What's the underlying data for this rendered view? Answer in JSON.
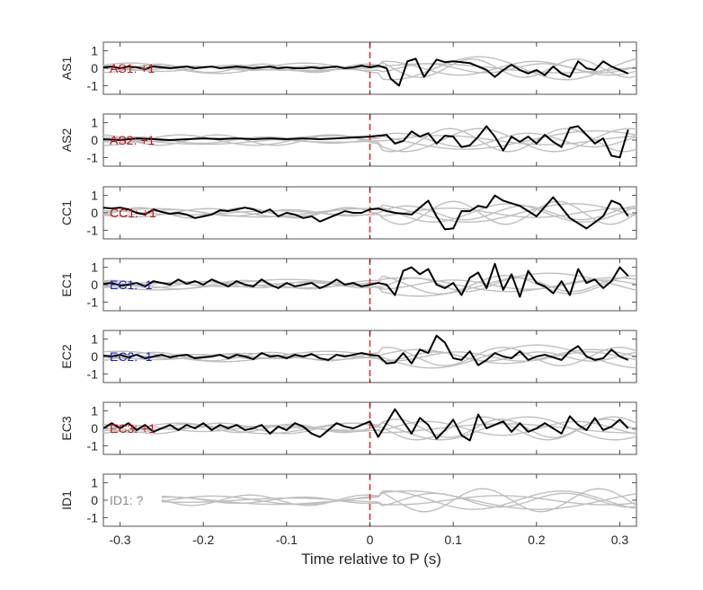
{
  "chart_data": {
    "type": "line",
    "xlabel": "Time relative to P (s)",
    "xlim": [
      -0.32,
      0.32
    ],
    "xticks": [
      -0.3,
      -0.2,
      -0.1,
      0,
      0.1,
      0.2,
      0.3
    ],
    "xtick_labels": [
      "-0.3",
      "-0.2",
      "-0.1",
      "0",
      "0.1",
      "0.2",
      "0.3"
    ],
    "ylim": [
      -1.5,
      1.5
    ],
    "yticks": [
      1,
      0,
      -1
    ],
    "ytick_labels": [
      "1",
      "0",
      "-1"
    ],
    "marker_line": {
      "x": 0,
      "color": "#e8202a"
    },
    "colors": {
      "trace": "#000000",
      "background": "#bfbfbf",
      "positive": "#c0161c",
      "negative": "#1c22a8",
      "unknown": "#8c8c8c"
    },
    "panels": [
      {
        "ylabel": "AS1",
        "annotation": "AS1: +1",
        "polarity": "positive",
        "x": [
          -0.32,
          -0.31,
          -0.3,
          -0.29,
          -0.28,
          -0.27,
          -0.26,
          -0.25,
          -0.24,
          -0.23,
          -0.22,
          -0.21,
          -0.2,
          -0.19,
          -0.18,
          -0.17,
          -0.16,
          -0.15,
          -0.14,
          -0.13,
          -0.12,
          -0.11,
          -0.1,
          -0.09,
          -0.08,
          -0.07,
          -0.06,
          -0.05,
          -0.04,
          -0.03,
          -0.02,
          -0.01,
          0,
          0.01,
          0.02,
          0.025,
          0.035,
          0.045,
          0.055,
          0.065,
          0.08,
          0.09,
          0.1,
          0.11,
          0.12,
          0.14,
          0.15,
          0.16,
          0.17,
          0.18,
          0.19,
          0.2,
          0.21,
          0.22,
          0.23,
          0.24,
          0.25,
          0.26,
          0.27,
          0.28,
          0.29,
          0.3,
          0.31
        ],
        "values": [
          0.05,
          0.1,
          0.0,
          0.1,
          0.05,
          -0.05,
          0.1,
          0.05,
          0.0,
          0.05,
          0.1,
          0.0,
          0.05,
          0.1,
          0.0,
          0.05,
          0.1,
          0.05,
          0.0,
          0.05,
          0.1,
          0.0,
          0.05,
          0.0,
          0.0,
          0.05,
          0.0,
          0.05,
          0.1,
          0.0,
          0.05,
          0.15,
          0.05,
          0.15,
          0.0,
          -0.6,
          -1.0,
          0.4,
          0.55,
          -0.5,
          0.5,
          0.35,
          0.4,
          0.35,
          0.3,
          -0.1,
          -0.5,
          -0.1,
          0.2,
          -0.1,
          -0.3,
          -0.1,
          -0.4,
          0.1,
          -0.3,
          -0.5,
          0.4,
          0.0,
          -0.1,
          0.4,
          0.1,
          -0.1,
          -0.3
        ]
      },
      {
        "ylabel": "AS2",
        "annotation": "AS2: +1",
        "polarity": "positive",
        "x": [
          -0.32,
          -0.3,
          -0.28,
          -0.26,
          -0.24,
          -0.22,
          -0.2,
          -0.18,
          -0.16,
          -0.14,
          -0.12,
          -0.1,
          -0.08,
          -0.06,
          -0.04,
          -0.02,
          0,
          0.01,
          0.02,
          0.03,
          0.04,
          0.05,
          0.06,
          0.07,
          0.08,
          0.09,
          0.1,
          0.11,
          0.12,
          0.13,
          0.14,
          0.15,
          0.16,
          0.17,
          0.18,
          0.19,
          0.2,
          0.21,
          0.22,
          0.23,
          0.24,
          0.25,
          0.26,
          0.27,
          0.28,
          0.29,
          0.3,
          0.31
        ],
        "values": [
          0.05,
          0.0,
          0.1,
          0.05,
          0.0,
          0.05,
          0.1,
          0.05,
          0.1,
          0.05,
          0.1,
          0.05,
          0.1,
          0.05,
          0.1,
          0.15,
          0.2,
          0.25,
          0.3,
          -0.2,
          -0.05,
          0.5,
          0.2,
          0.4,
          -0.2,
          0.25,
          0.2,
          -0.4,
          -0.3,
          0.2,
          0.8,
          0.2,
          -0.6,
          0.2,
          -0.1,
          0.2,
          -0.2,
          0.3,
          -0.1,
          -0.4,
          0.7,
          0.8,
          0.3,
          -0.2,
          0.1,
          -0.9,
          -1.0,
          0.6
        ]
      },
      {
        "ylabel": "CC1",
        "annotation": "CC1: +1",
        "polarity": "positive",
        "x": [
          -0.32,
          -0.31,
          -0.3,
          -0.29,
          -0.28,
          -0.27,
          -0.26,
          -0.25,
          -0.24,
          -0.23,
          -0.22,
          -0.21,
          -0.2,
          -0.19,
          -0.18,
          -0.17,
          -0.16,
          -0.15,
          -0.14,
          -0.13,
          -0.12,
          -0.11,
          -0.1,
          -0.09,
          -0.08,
          -0.07,
          -0.06,
          -0.05,
          -0.04,
          -0.03,
          -0.02,
          -0.01,
          0,
          0.01,
          0.02,
          0.03,
          0.05,
          0.06,
          0.07,
          0.08,
          0.09,
          0.1,
          0.11,
          0.12,
          0.13,
          0.14,
          0.15,
          0.16,
          0.18,
          0.2,
          0.22,
          0.24,
          0.26,
          0.28,
          0.29,
          0.3,
          0.31
        ],
        "values": [
          0.3,
          0.25,
          0.3,
          0.2,
          0.0,
          -0.1,
          0.2,
          0.05,
          -0.05,
          0.0,
          -0.1,
          -0.3,
          -0.2,
          -0.1,
          0.15,
          0.1,
          0.2,
          0.3,
          0.2,
          0.0,
          0.2,
          -0.2,
          0.0,
          -0.1,
          -0.3,
          -0.2,
          -0.5,
          -0.3,
          -0.1,
          0.1,
          0.0,
          0.0,
          0.2,
          0.25,
          0.1,
          0.0,
          -0.1,
          0.3,
          0.7,
          -0.2,
          -0.95,
          -0.9,
          0.1,
          0.1,
          0.4,
          0.3,
          1.0,
          0.7,
          0.4,
          -0.2,
          0.9,
          -0.3,
          -0.9,
          -0.2,
          0.7,
          0.5,
          -0.2
        ]
      },
      {
        "ylabel": "EC1",
        "annotation": "EC1: -1",
        "polarity": "negative",
        "x": [
          -0.32,
          -0.31,
          -0.3,
          -0.29,
          -0.28,
          -0.27,
          -0.26,
          -0.25,
          -0.24,
          -0.23,
          -0.22,
          -0.21,
          -0.2,
          -0.19,
          -0.18,
          -0.17,
          -0.16,
          -0.15,
          -0.14,
          -0.13,
          -0.12,
          -0.11,
          -0.1,
          -0.09,
          -0.08,
          -0.07,
          -0.06,
          -0.05,
          -0.04,
          -0.03,
          -0.02,
          -0.01,
          0,
          0.01,
          0.02,
          0.03,
          0.04,
          0.05,
          0.06,
          0.07,
          0.08,
          0.09,
          0.1,
          0.11,
          0.12,
          0.13,
          0.14,
          0.15,
          0.16,
          0.17,
          0.18,
          0.19,
          0.2,
          0.21,
          0.22,
          0.23,
          0.24,
          0.25,
          0.26,
          0.27,
          0.28,
          0.29,
          0.3,
          0.31
        ],
        "values": [
          0.05,
          0.1,
          -0.05,
          0.0,
          0.1,
          -0.1,
          0.2,
          0.1,
          0.0,
          0.3,
          0.05,
          0.2,
          0.0,
          0.3,
          0.1,
          -0.1,
          0.2,
          0.0,
          -0.1,
          0.3,
          0.0,
          -0.2,
          0.1,
          -0.1,
          0.0,
          0.1,
          -0.2,
          0.0,
          0.3,
          0.0,
          0.1,
          -0.1,
          0.0,
          0.1,
          0.0,
          -0.6,
          0.8,
          1.0,
          0.6,
          0.9,
          0.0,
          -0.2,
          0.1,
          -0.6,
          0.4,
          0.7,
          -0.2,
          1.2,
          -0.3,
          0.6,
          -0.7,
          0.8,
          0.1,
          -0.1,
          -0.5,
          0.2,
          -0.6,
          0.9,
          0.1,
          0.3,
          -0.2,
          0.2,
          1.0,
          0.5
        ]
      },
      {
        "ylabel": "EC2",
        "annotation": "EC2: -1",
        "polarity": "negative",
        "x": [
          -0.32,
          -0.31,
          -0.3,
          -0.29,
          -0.28,
          -0.27,
          -0.26,
          -0.25,
          -0.24,
          -0.23,
          -0.22,
          -0.21,
          -0.2,
          -0.19,
          -0.18,
          -0.17,
          -0.16,
          -0.15,
          -0.14,
          -0.13,
          -0.12,
          -0.11,
          -0.1,
          -0.09,
          -0.08,
          -0.07,
          -0.06,
          -0.05,
          -0.04,
          -0.03,
          -0.02,
          -0.01,
          0,
          0.01,
          0.02,
          0.03,
          0.04,
          0.05,
          0.06,
          0.07,
          0.08,
          0.09,
          0.1,
          0.11,
          0.12,
          0.13,
          0.14,
          0.15,
          0.16,
          0.17,
          0.18,
          0.19,
          0.2,
          0.21,
          0.22,
          0.23,
          0.24,
          0.25,
          0.26,
          0.27,
          0.28,
          0.29,
          0.3,
          0.31
        ],
        "values": [
          0.05,
          0.0,
          0.1,
          -0.05,
          0.1,
          -0.1,
          0.0,
          0.1,
          -0.05,
          0.05,
          0.1,
          -0.1,
          -0.05,
          0.0,
          0.1,
          -0.1,
          0.1,
          0.0,
          -0.15,
          0.2,
          0.0,
          0.05,
          -0.1,
          0.1,
          0.0,
          0.15,
          -0.1,
          -0.2,
          0.1,
          0.0,
          0.1,
          0.2,
          0.1,
          0.05,
          -0.4,
          -0.35,
          0.2,
          -0.4,
          0.4,
          0.2,
          1.2,
          0.8,
          -0.1,
          -0.2,
          0.3,
          -0.5,
          -0.2,
          0.2,
          0.0,
          -0.1,
          0.3,
          -0.2,
          0.0,
          0.1,
          -0.05,
          -0.2,
          0.3,
          0.6,
          0.0,
          -0.2,
          -0.1,
          0.4,
          0.0,
          -0.2
        ]
      },
      {
        "ylabel": "EC3",
        "annotation": "EC3: +1",
        "polarity": "positive",
        "x": [
          -0.32,
          -0.31,
          -0.3,
          -0.29,
          -0.28,
          -0.27,
          -0.26,
          -0.25,
          -0.24,
          -0.23,
          -0.22,
          -0.21,
          -0.2,
          -0.19,
          -0.18,
          -0.17,
          -0.16,
          -0.15,
          -0.14,
          -0.13,
          -0.12,
          -0.11,
          -0.1,
          -0.09,
          -0.08,
          -0.07,
          -0.06,
          -0.05,
          -0.04,
          -0.03,
          -0.02,
          -0.01,
          0,
          0.01,
          0.02,
          0.03,
          0.04,
          0.05,
          0.06,
          0.07,
          0.08,
          0.09,
          0.1,
          0.11,
          0.12,
          0.13,
          0.14,
          0.15,
          0.16,
          0.17,
          0.18,
          0.19,
          0.2,
          0.21,
          0.22,
          0.23,
          0.24,
          0.25,
          0.26,
          0.27,
          0.28,
          0.29,
          0.3,
          0.31
        ],
        "values": [
          0.0,
          0.3,
          0.0,
          0.3,
          -0.1,
          0.2,
          -0.2,
          0.0,
          0.2,
          -0.1,
          0.2,
          0.0,
          0.3,
          -0.1,
          0.2,
          0.0,
          0.2,
          -0.1,
          0.0,
          0.2,
          -0.3,
          0.1,
          -0.1,
          0.3,
          0.1,
          -0.3,
          -0.5,
          -0.1,
          0.3,
          0.1,
          0.0,
          0.2,
          0.4,
          -0.5,
          0.3,
          1.1,
          0.4,
          -0.3,
          0.6,
          0.2,
          -0.6,
          -0.1,
          0.5,
          -0.4,
          -0.7,
          0.8,
          0.0,
          0.2,
          0.4,
          -0.2,
          0.3,
          -0.2,
          0.0,
          0.3,
          0.0,
          -0.3,
          0.7,
          0.2,
          -0.1,
          0.6,
          -0.1,
          0.1,
          0.5,
          0.0
        ]
      },
      {
        "ylabel": "ID1",
        "annotation": "ID1: ?",
        "polarity": "unknown",
        "x": [],
        "values": []
      }
    ]
  }
}
